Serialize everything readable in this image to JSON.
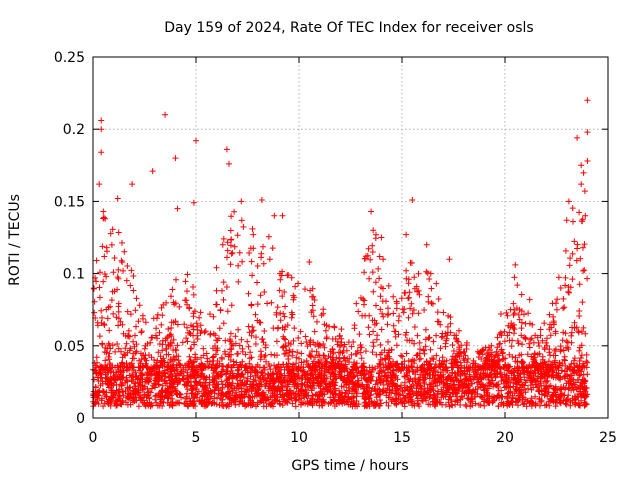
{
  "chart_data": {
    "type": "scatter",
    "title": "Day 159 of 2024, Rate Of TEC Index for receiver osls",
    "xlabel": "GPS time / hours",
    "ylabel": "ROTI / TECUs",
    "xlim": [
      0,
      25
    ],
    "ylim": [
      0,
      0.25
    ],
    "xticks": [
      0,
      5,
      10,
      15,
      20,
      25
    ],
    "xtick_labels": [
      "0",
      "5",
      "10",
      "15",
      "20",
      "25"
    ],
    "yticks": [
      0,
      0.05,
      0.1,
      0.15,
      0.2,
      0.25
    ],
    "ytick_labels": [
      "0",
      "0.05",
      "0.1",
      "0.15",
      "0.2",
      "0.25"
    ],
    "grid": true,
    "marker": "plus",
    "series_color": "#ff0000",
    "x_data_range": [
      0,
      24
    ],
    "baseline_band": [
      0.008,
      0.035
    ],
    "series": [
      {
        "name": "ROTI",
        "notable_points": [
          {
            "x": 0.4,
            "y": 0.206
          },
          {
            "x": 0.4,
            "y": 0.2
          },
          {
            "x": 0.4,
            "y": 0.184
          },
          {
            "x": 0.3,
            "y": 0.162
          },
          {
            "x": 0.5,
            "y": 0.143
          },
          {
            "x": 1.2,
            "y": 0.152
          },
          {
            "x": 1.9,
            "y": 0.162
          },
          {
            "x": 2.9,
            "y": 0.171
          },
          {
            "x": 3.5,
            "y": 0.21
          },
          {
            "x": 4.0,
            "y": 0.18
          },
          {
            "x": 4.1,
            "y": 0.145
          },
          {
            "x": 5.0,
            "y": 0.192
          },
          {
            "x": 4.9,
            "y": 0.149
          },
          {
            "x": 6.5,
            "y": 0.186
          },
          {
            "x": 6.6,
            "y": 0.176
          },
          {
            "x": 7.2,
            "y": 0.15
          },
          {
            "x": 8.2,
            "y": 0.151
          },
          {
            "x": 8.8,
            "y": 0.14
          },
          {
            "x": 9.2,
            "y": 0.14
          },
          {
            "x": 10.5,
            "y": 0.108
          },
          {
            "x": 13.5,
            "y": 0.143
          },
          {
            "x": 13.6,
            "y": 0.13
          },
          {
            "x": 14.0,
            "y": 0.125
          },
          {
            "x": 15.2,
            "y": 0.127
          },
          {
            "x": 15.5,
            "y": 0.151
          },
          {
            "x": 16.2,
            "y": 0.12
          },
          {
            "x": 16.4,
            "y": 0.1
          },
          {
            "x": 17.3,
            "y": 0.11
          },
          {
            "x": 19.8,
            "y": 0.072
          },
          {
            "x": 20.5,
            "y": 0.106
          },
          {
            "x": 21.2,
            "y": 0.082
          },
          {
            "x": 23.1,
            "y": 0.15
          },
          {
            "x": 23.3,
            "y": 0.136
          },
          {
            "x": 23.5,
            "y": 0.194
          },
          {
            "x": 23.7,
            "y": 0.175
          },
          {
            "x": 23.7,
            "y": 0.162
          },
          {
            "x": 23.9,
            "y": 0.14
          },
          {
            "x": 24.0,
            "y": 0.22
          },
          {
            "x": 24.0,
            "y": 0.198
          },
          {
            "x": 24.0,
            "y": 0.178
          }
        ],
        "envelope": [
          {
            "x": 0.5,
            "y": 0.14
          },
          {
            "x": 1.5,
            "y": 0.125
          },
          {
            "x": 2.5,
            "y": 0.07
          },
          {
            "x": 3.5,
            "y": 0.08
          },
          {
            "x": 4.5,
            "y": 0.11
          },
          {
            "x": 5.5,
            "y": 0.06
          },
          {
            "x": 6.5,
            "y": 0.15
          },
          {
            "x": 7.5,
            "y": 0.14
          },
          {
            "x": 8.5,
            "y": 0.13
          },
          {
            "x": 9.5,
            "y": 0.1
          },
          {
            "x": 10.5,
            "y": 0.1
          },
          {
            "x": 11.5,
            "y": 0.065
          },
          {
            "x": 12.5,
            "y": 0.06
          },
          {
            "x": 13.5,
            "y": 0.14
          },
          {
            "x": 14.5,
            "y": 0.09
          },
          {
            "x": 15.5,
            "y": 0.11
          },
          {
            "x": 16.5,
            "y": 0.1
          },
          {
            "x": 17.5,
            "y": 0.065
          },
          {
            "x": 18.5,
            "y": 0.05
          },
          {
            "x": 19.5,
            "y": 0.05
          },
          {
            "x": 20.5,
            "y": 0.1
          },
          {
            "x": 21.5,
            "y": 0.06
          },
          {
            "x": 22.5,
            "y": 0.09
          },
          {
            "x": 23.5,
            "y": 0.19
          }
        ]
      }
    ]
  }
}
